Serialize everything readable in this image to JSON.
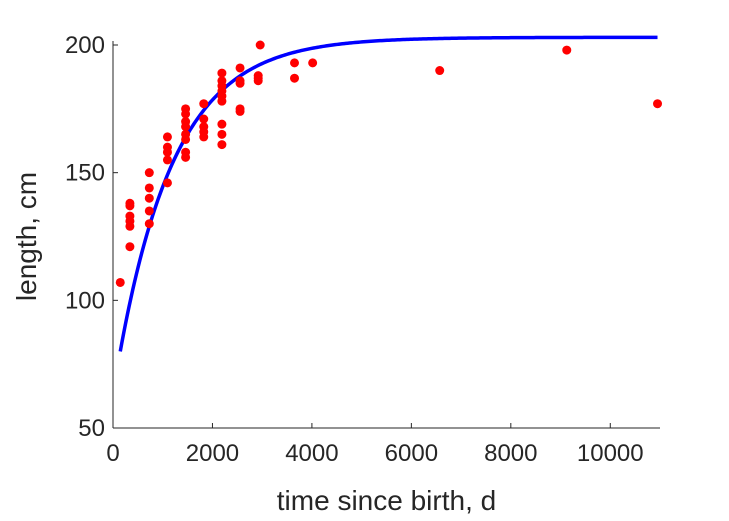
{
  "chart_data": {
    "type": "scatter",
    "title": "",
    "xlabel": "time since birth, d",
    "ylabel": "length, cm",
    "xlim": [
      0,
      11000
    ],
    "ylim": [
      50,
      200
    ],
    "x_ticks": [
      0,
      2000,
      4000,
      6000,
      8000,
      10000
    ],
    "x_tick_labels": [
      "0",
      "2000",
      "4000",
      "6000",
      "8000",
      "10000"
    ],
    "y_ticks": [
      50,
      100,
      150,
      200
    ],
    "y_tick_labels": [
      "50",
      "100",
      "150",
      "200"
    ],
    "grid": false,
    "legend": "none",
    "series": [
      {
        "type": "scatter",
        "color": "#ff0000",
        "points": [
          {
            "x": 146,
            "y": 107
          },
          {
            "x": 340,
            "y": 121
          },
          {
            "x": 340,
            "y": 129
          },
          {
            "x": 340,
            "y": 131
          },
          {
            "x": 340,
            "y": 133
          },
          {
            "x": 340,
            "y": 137
          },
          {
            "x": 340,
            "y": 138
          },
          {
            "x": 730,
            "y": 130
          },
          {
            "x": 730,
            "y": 135
          },
          {
            "x": 730,
            "y": 140
          },
          {
            "x": 730,
            "y": 144
          },
          {
            "x": 730,
            "y": 150
          },
          {
            "x": 1095,
            "y": 146
          },
          {
            "x": 1095,
            "y": 155
          },
          {
            "x": 1095,
            "y": 158
          },
          {
            "x": 1095,
            "y": 160
          },
          {
            "x": 1095,
            "y": 164
          },
          {
            "x": 1460,
            "y": 156
          },
          {
            "x": 1460,
            "y": 158
          },
          {
            "x": 1460,
            "y": 163
          },
          {
            "x": 1460,
            "y": 165
          },
          {
            "x": 1460,
            "y": 168
          },
          {
            "x": 1460,
            "y": 170
          },
          {
            "x": 1460,
            "y": 173
          },
          {
            "x": 1460,
            "y": 175
          },
          {
            "x": 1825,
            "y": 164
          },
          {
            "x": 1825,
            "y": 166
          },
          {
            "x": 1825,
            "y": 168
          },
          {
            "x": 1825,
            "y": 171
          },
          {
            "x": 1825,
            "y": 177
          },
          {
            "x": 2190,
            "y": 161
          },
          {
            "x": 2190,
            "y": 165
          },
          {
            "x": 2190,
            "y": 169
          },
          {
            "x": 2190,
            "y": 178
          },
          {
            "x": 2190,
            "y": 180
          },
          {
            "x": 2190,
            "y": 182
          },
          {
            "x": 2190,
            "y": 184
          },
          {
            "x": 2190,
            "y": 186
          },
          {
            "x": 2190,
            "y": 189
          },
          {
            "x": 2555,
            "y": 174
          },
          {
            "x": 2555,
            "y": 175
          },
          {
            "x": 2555,
            "y": 185
          },
          {
            "x": 2555,
            "y": 186
          },
          {
            "x": 2555,
            "y": 191
          },
          {
            "x": 2920,
            "y": 186
          },
          {
            "x": 2920,
            "y": 187
          },
          {
            "x": 2920,
            "y": 188
          },
          {
            "x": 2960,
            "y": 200
          },
          {
            "x": 3650,
            "y": 187
          },
          {
            "x": 3650,
            "y": 193
          },
          {
            "x": 4015,
            "y": 193
          },
          {
            "x": 6570,
            "y": 190
          },
          {
            "x": 9125,
            "y": 198
          },
          {
            "x": 10950,
            "y": 177
          }
        ]
      },
      {
        "type": "line",
        "color": "#0000ff",
        "model": "exponential approach",
        "params": {
          "L_inf": 203,
          "L0": 80,
          "k": 0.00087,
          "t0": 146
        },
        "x_range": [
          146,
          10950
        ]
      }
    ]
  }
}
